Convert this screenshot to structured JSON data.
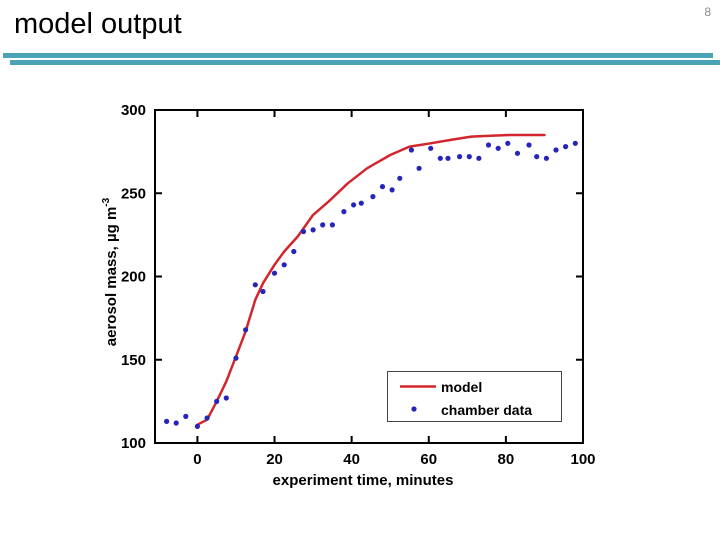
{
  "header": {
    "title": "model output",
    "page_number": "8"
  },
  "divider": {
    "color": "#4ba4b5"
  },
  "chart_data": {
    "type": "line",
    "title": "",
    "xlabel": "experiment time, minutes",
    "ylabel": "aerosol mass, µg m",
    "ylabel_superscript": "-3",
    "xlim": [
      -11,
      100
    ],
    "ylim": [
      100,
      300
    ],
    "xticks": [
      0,
      20,
      40,
      60,
      80,
      100
    ],
    "yticks": [
      100,
      150,
      200,
      250,
      300
    ],
    "grid": false,
    "axis_color": "#000000",
    "legend": {
      "position": "inside-lower-right",
      "entries": [
        {
          "label": "model",
          "style": "line",
          "color": "#d2262c"
        },
        {
          "label": "chamber data",
          "style": "scatter",
          "color": "#2525bb"
        }
      ]
    },
    "series": [
      {
        "name": "model",
        "style": "line",
        "color": "#d2262c",
        "points": [
          [
            0,
            111
          ],
          [
            2.5,
            114
          ],
          [
            5,
            125
          ],
          [
            7.5,
            137
          ],
          [
            10,
            152
          ],
          [
            12.5,
            167
          ],
          [
            15,
            186
          ],
          [
            17,
            196
          ],
          [
            20,
            207
          ],
          [
            22.5,
            215
          ],
          [
            26,
            224
          ],
          [
            30,
            237
          ],
          [
            34.5,
            246
          ],
          [
            39,
            256
          ],
          [
            44,
            265
          ],
          [
            50,
            273
          ],
          [
            55,
            278
          ],
          [
            60.5,
            280
          ],
          [
            65.5,
            282
          ],
          [
            71,
            284
          ],
          [
            76,
            284.5
          ],
          [
            81,
            285
          ],
          [
            90,
            285
          ]
        ]
      },
      {
        "name": "chamber data",
        "style": "scatter",
        "color": "#2525bb",
        "points": [
          [
            -8,
            113
          ],
          [
            -5.5,
            112
          ],
          [
            -3,
            116
          ],
          [
            0,
            110
          ],
          [
            2.5,
            115
          ],
          [
            5,
            125
          ],
          [
            7.5,
            127
          ],
          [
            10,
            151
          ],
          [
            12.5,
            168
          ],
          [
            15,
            195
          ],
          [
            17,
            191
          ],
          [
            20,
            202
          ],
          [
            22.5,
            207
          ],
          [
            25,
            215
          ],
          [
            27.5,
            227
          ],
          [
            30,
            228
          ],
          [
            32.5,
            231
          ],
          [
            35,
            231
          ],
          [
            38,
            239
          ],
          [
            40.5,
            243
          ],
          [
            42.5,
            244
          ],
          [
            45.5,
            248
          ],
          [
            48,
            254
          ],
          [
            50.5,
            252
          ],
          [
            52.5,
            259
          ],
          [
            55.5,
            276
          ],
          [
            57.5,
            265
          ],
          [
            60.5,
            277
          ],
          [
            63,
            271
          ],
          [
            65,
            271
          ],
          [
            68,
            272
          ],
          [
            70.5,
            272
          ],
          [
            73,
            271
          ],
          [
            75.5,
            279
          ],
          [
            78,
            277
          ],
          [
            80.5,
            280
          ],
          [
            83,
            274
          ],
          [
            86,
            279
          ],
          [
            88,
            272
          ],
          [
            90.5,
            271
          ],
          [
            93,
            276
          ],
          [
            95.5,
            278
          ],
          [
            98,
            280
          ]
        ]
      }
    ]
  }
}
